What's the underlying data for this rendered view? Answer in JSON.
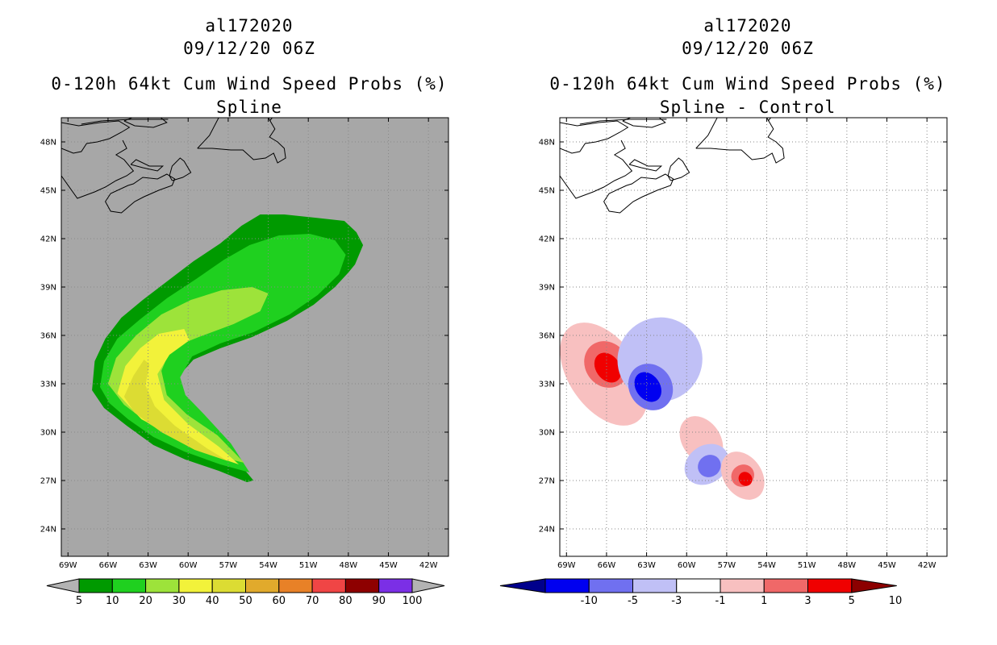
{
  "chart_data": [
    {
      "type": "heatmap",
      "title_lines": [
        "al172020",
        "09/12/20 06Z",
        "0-120h 64kt Cum Wind Speed Probs (%)",
        "Spline"
      ],
      "x_ticks": [
        "69W",
        "66W",
        "63W",
        "60W",
        "57W",
        "54W",
        "51W",
        "48W",
        "45W",
        "42W"
      ],
      "y_ticks": [
        "24N",
        "27N",
        "30N",
        "33N",
        "36N",
        "39N",
        "42N",
        "45N",
        "48N"
      ],
      "xlim": [
        -69.5,
        -40.5
      ],
      "ylim": [
        22.3,
        49.5
      ],
      "colorbar": {
        "labels": [
          "5",
          "10",
          "20",
          "30",
          "40",
          "50",
          "60",
          "70",
          "80",
          "90",
          "100"
        ],
        "colors": [
          "#009a00",
          "#1fd01f",
          "#9de33a",
          "#f2f23a",
          "#dcdc33",
          "#e1aa2c",
          "#e88127",
          "#f04545",
          "#8e0000",
          "#7b2fe6"
        ]
      },
      "background": "#a7a7a7",
      "contour_levels": [
        {
          "min": 5,
          "color": "#009a00"
        },
        {
          "min": 10,
          "color": "#1fd01f"
        },
        {
          "min": 20,
          "color": "#9de33a"
        },
        {
          "min": 30,
          "color": "#f2f23a"
        },
        {
          "min": 40,
          "color": "#dcdc33"
        }
      ]
    },
    {
      "type": "heatmap",
      "title_lines": [
        "al172020",
        "09/12/20 06Z",
        "0-120h 64kt Cum Wind Speed Probs (%)",
        "Spline - Control"
      ],
      "x_ticks": [
        "69W",
        "66W",
        "63W",
        "60W",
        "57W",
        "54W",
        "51W",
        "48W",
        "45W",
        "42W"
      ],
      "y_ticks": [
        "24N",
        "27N",
        "30N",
        "33N",
        "36N",
        "39N",
        "42N",
        "45N",
        "48N"
      ],
      "xlim": [
        -69.5,
        -40.5
      ],
      "ylim": [
        22.3,
        49.5
      ],
      "colorbar": {
        "labels": [
          "-10",
          "-5",
          "-3",
          "-1",
          "1",
          "3",
          "5",
          "10"
        ],
        "colors": [
          "#00008c",
          "#0000f0",
          "#7070f0",
          "#c0c0f6",
          "#ffffff",
          "#f8c0c0",
          "#f06868",
          "#f00000",
          "#8c0000"
        ]
      },
      "background": "#ffffff",
      "anomalies": [
        {
          "sign": "positive",
          "level": 1,
          "center_lon": -66.2,
          "center_lat": 33.6
        },
        {
          "sign": "positive",
          "level": 3,
          "center_lon": -66.0,
          "center_lat": 34.2
        },
        {
          "sign": "positive",
          "level": 5,
          "center_lon": -65.9,
          "center_lat": 34.0
        },
        {
          "sign": "negative",
          "level": 1,
          "center_lon": -62.0,
          "center_lat": 34.5
        },
        {
          "sign": "negative",
          "level": 3,
          "center_lon": -62.7,
          "center_lat": 32.8
        },
        {
          "sign": "negative",
          "level": 5,
          "center_lon": -62.9,
          "center_lat": 32.8
        },
        {
          "sign": "positive",
          "level": 1,
          "center_lon": -58.9,
          "center_lat": 29.5
        },
        {
          "sign": "negative",
          "level": 1,
          "center_lon": -58.5,
          "center_lat": 28.0
        },
        {
          "sign": "negative",
          "level": 3,
          "center_lon": -58.3,
          "center_lat": 27.9
        },
        {
          "sign": "positive",
          "level": 1,
          "center_lon": -55.8,
          "center_lat": 27.3
        },
        {
          "sign": "positive",
          "level": 3,
          "center_lon": -55.8,
          "center_lat": 27.3
        },
        {
          "sign": "positive",
          "level": 5,
          "center_lon": -55.6,
          "center_lat": 27.1
        }
      ]
    }
  ],
  "palette": {
    "grid": "#888888",
    "coast": "#000000",
    "axis": "#000000"
  }
}
